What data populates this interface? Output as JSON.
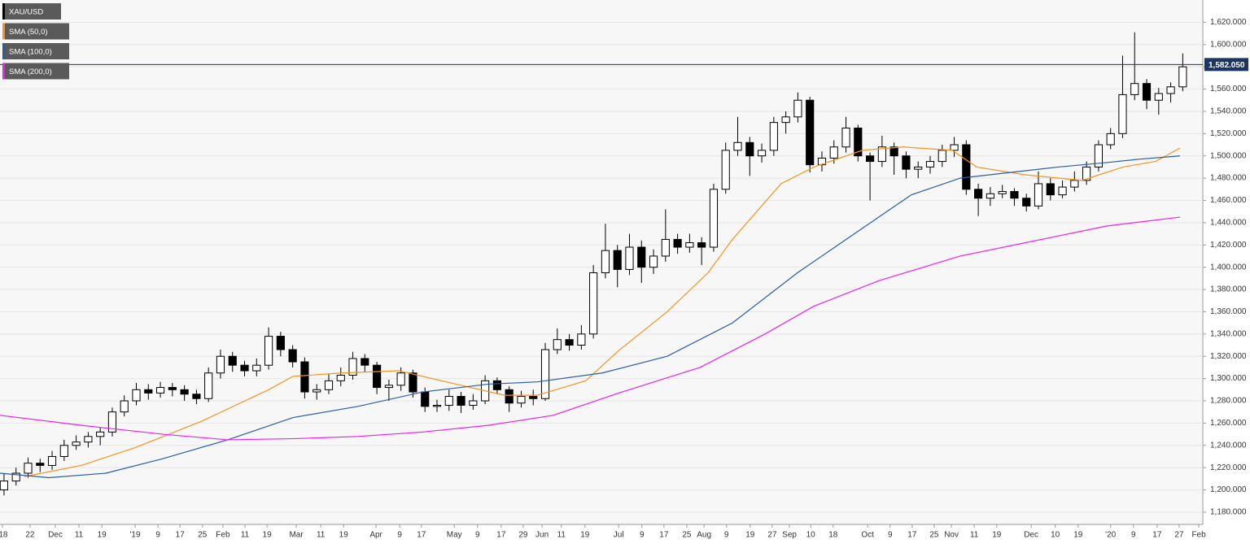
{
  "chart_data": {
    "type": "candlestick",
    "xlim": [
      0,
      300
    ],
    "ylim": [
      1169,
      1640
    ],
    "xticks": [
      {
        "value": 0.6,
        "label": "'18"
      },
      {
        "value": 7.5,
        "label": "22"
      },
      {
        "value": 13.8,
        "label": "Dec"
      },
      {
        "value": 19.7,
        "label": "11"
      },
      {
        "value": 25.4,
        "label": "19"
      },
      {
        "value": 33.7,
        "label": "'19"
      },
      {
        "value": 39.4,
        "label": "9"
      },
      {
        "value": 44.9,
        "label": "17"
      },
      {
        "value": 50.5,
        "label": "25"
      },
      {
        "value": 55.6,
        "label": "Feb"
      },
      {
        "value": 61.1,
        "label": "11"
      },
      {
        "value": 66.6,
        "label": "19"
      },
      {
        "value": 73.9,
        "label": "Mar"
      },
      {
        "value": 80,
        "label": "11"
      },
      {
        "value": 85.7,
        "label": "19"
      },
      {
        "value": 93.8,
        "label": "Apr"
      },
      {
        "value": 99.7,
        "label": "9"
      },
      {
        "value": 105.1,
        "label": "17"
      },
      {
        "value": 113.3,
        "label": "May"
      },
      {
        "value": 119.1,
        "label": "9"
      },
      {
        "value": 125,
        "label": "17"
      },
      {
        "value": 130.5,
        "label": "29"
      },
      {
        "value": 135.2,
        "label": "Jun"
      },
      {
        "value": 140,
        "label": "11"
      },
      {
        "value": 145.9,
        "label": "19"
      },
      {
        "value": 154.3,
        "label": "Jul"
      },
      {
        "value": 160.1,
        "label": "9"
      },
      {
        "value": 165.6,
        "label": "17"
      },
      {
        "value": 171.3,
        "label": "25"
      },
      {
        "value": 175.6,
        "label": "Aug"
      },
      {
        "value": 181.2,
        "label": "9"
      },
      {
        "value": 187.1,
        "label": "19"
      },
      {
        "value": 192.6,
        "label": "27"
      },
      {
        "value": 196.9,
        "label": "Sep"
      },
      {
        "value": 202.2,
        "label": "10"
      },
      {
        "value": 207.8,
        "label": "18"
      },
      {
        "value": 216.4,
        "label": "Oct"
      },
      {
        "value": 222,
        "label": "9"
      },
      {
        "value": 227.5,
        "label": "17"
      },
      {
        "value": 233,
        "label": "25"
      },
      {
        "value": 237.3,
        "label": "Nov"
      },
      {
        "value": 243,
        "label": "11"
      },
      {
        "value": 248.6,
        "label": "19"
      },
      {
        "value": 257.2,
        "label": "Dec"
      },
      {
        "value": 263.2,
        "label": "10"
      },
      {
        "value": 268.9,
        "label": "19"
      },
      {
        "value": 277,
        "label": "'20"
      },
      {
        "value": 282.7,
        "label": "9"
      },
      {
        "value": 288.6,
        "label": "17"
      },
      {
        "value": 294.1,
        "label": "27"
      },
      {
        "value": 299,
        "label": "Feb"
      }
    ],
    "yticks": [
      {
        "value": 1180,
        "label": "1,180.000"
      },
      {
        "value": 1200,
        "label": "1,200.000"
      },
      {
        "value": 1220,
        "label": "1,220.000"
      },
      {
        "value": 1240,
        "label": "1,240.000"
      },
      {
        "value": 1260,
        "label": "1,260.000"
      },
      {
        "value": 1280,
        "label": "1,280.000"
      },
      {
        "value": 1300,
        "label": "1,300.000"
      },
      {
        "value": 1320,
        "label": "1,320.000"
      },
      {
        "value": 1340,
        "label": "1,340.000"
      },
      {
        "value": 1360,
        "label": "1,360.000"
      },
      {
        "value": 1380,
        "label": "1,380.000"
      },
      {
        "value": 1400,
        "label": "1,400.000"
      },
      {
        "value": 1420,
        "label": "1,420.000"
      },
      {
        "value": 1440,
        "label": "1,440.000"
      },
      {
        "value": 1460,
        "label": "1,460.000"
      },
      {
        "value": 1480,
        "label": "1,480.000"
      },
      {
        "value": 1500,
        "label": "1,500.000"
      },
      {
        "value": 1520,
        "label": "1,520.000"
      },
      {
        "value": 1540,
        "label": "1,540.000"
      },
      {
        "value": 1560,
        "label": "1,560.000"
      },
      {
        "value": 1580,
        "label": "1,580.000"
      },
      {
        "value": 1600,
        "label": "1,600.000"
      },
      {
        "value": 1620,
        "label": "1,620.000"
      }
    ],
    "grid": true,
    "last_price": {
      "value": 1582.05,
      "label": "1,582.050",
      "color": "#1c3561"
    },
    "series": [
      {
        "name": "XAU/USD",
        "color": "#000000",
        "x": [
          1,
          4,
          7,
          10,
          13,
          16,
          19,
          22,
          25,
          28,
          31,
          34,
          37,
          40,
          43,
          46,
          49,
          52,
          55,
          58,
          61,
          64,
          67,
          70,
          73,
          76,
          79,
          82,
          85,
          88,
          91,
          94,
          97,
          100,
          103,
          106,
          109,
          112,
          115,
          118,
          121,
          124,
          127,
          130,
          133,
          136,
          139,
          142,
          145,
          148,
          151,
          154,
          157,
          160,
          163,
          166,
          169,
          172,
          175,
          178,
          181,
          184,
          187,
          190,
          193,
          196,
          199,
          202,
          205,
          208,
          211,
          214,
          217,
          220,
          223,
          226,
          229,
          232,
          235,
          238,
          241,
          244,
          247,
          250,
          253,
          256,
          259,
          262,
          265,
          268,
          271,
          274,
          277,
          280,
          283,
          286,
          289,
          292,
          295
        ],
        "open": [
          1200,
          1208,
          1215,
          1224,
          1222,
          1230,
          1240,
          1243,
          1248,
          1252,
          1270,
          1280,
          1290,
          1287,
          1292,
          1290,
          1286,
          1282,
          1305,
          1320,
          1312,
          1307,
          1312,
          1338,
          1326,
          1315,
          1288,
          1290,
          1298,
          1303,
          1318,
          1312,
          1292,
          1294,
          1305,
          1288,
          1275,
          1276,
          1284,
          1276,
          1280,
          1298,
          1290,
          1278,
          1284,
          1282,
          1326,
          1335,
          1330,
          1340,
          1395,
          1415,
          1398,
          1418,
          1400,
          1410,
          1425,
          1418,
          1422,
          1418,
          1470,
          1505,
          1512,
          1500,
          1505,
          1530,
          1535,
          1550,
          1492,
          1498,
          1508,
          1525,
          1500,
          1495,
          1508,
          1500,
          1488,
          1490,
          1495,
          1505,
          1510,
          1470,
          1462,
          1466,
          1468,
          1462,
          1455,
          1475,
          1465,
          1472,
          1478,
          1490,
          1510,
          1520,
          1555,
          1565,
          1550,
          1556,
          1562
        ],
        "high": [
          1215,
          1220,
          1229,
          1228,
          1235,
          1245,
          1249,
          1252,
          1256,
          1274,
          1285,
          1296,
          1295,
          1297,
          1296,
          1294,
          1290,
          1310,
          1326,
          1324,
          1316,
          1318,
          1346,
          1342,
          1330,
          1319,
          1295,
          1304,
          1310,
          1324,
          1322,
          1315,
          1299,
          1310,
          1308,
          1292,
          1281,
          1290,
          1288,
          1286,
          1303,
          1301,
          1293,
          1289,
          1290,
          1332,
          1345,
          1340,
          1348,
          1402,
          1439,
          1420,
          1430,
          1424,
          1416,
          1452,
          1430,
          1430,
          1427,
          1475,
          1512,
          1535,
          1517,
          1511,
          1535,
          1540,
          1557,
          1553,
          1504,
          1514,
          1535,
          1528,
          1503,
          1518,
          1512,
          1504,
          1495,
          1500,
          1510,
          1517,
          1514,
          1475,
          1472,
          1474,
          1471,
          1466,
          1486,
          1480,
          1478,
          1486,
          1495,
          1514,
          1525,
          1590,
          1611,
          1569,
          1561,
          1566,
          1592
        ],
        "low": [
          1195,
          1204,
          1211,
          1216,
          1218,
          1226,
          1236,
          1238,
          1240,
          1248,
          1266,
          1276,
          1281,
          1283,
          1284,
          1280,
          1277,
          1279,
          1300,
          1306,
          1302,
          1302,
          1308,
          1320,
          1310,
          1282,
          1281,
          1286,
          1293,
          1299,
          1306,
          1286,
          1280,
          1289,
          1283,
          1270,
          1270,
          1271,
          1269,
          1272,
          1277,
          1286,
          1270,
          1274,
          1276,
          1280,
          1322,
          1325,
          1326,
          1336,
          1390,
          1382,
          1393,
          1386,
          1394,
          1405,
          1412,
          1413,
          1402,
          1414,
          1466,
          1500,
          1482,
          1494,
          1500,
          1520,
          1530,
          1485,
          1486,
          1493,
          1503,
          1495,
          1460,
          1490,
          1483,
          1480,
          1480,
          1484,
          1490,
          1499,
          1465,
          1446,
          1455,
          1462,
          1455,
          1450,
          1452,
          1460,
          1462,
          1468,
          1474,
          1486,
          1506,
          1516,
          1550,
          1542,
          1537,
          1548,
          1558
        ],
        "close": [
          1208,
          1215,
          1224,
          1222,
          1230,
          1240,
          1243,
          1248,
          1252,
          1270,
          1280,
          1290,
          1287,
          1292,
          1290,
          1286,
          1282,
          1305,
          1320,
          1312,
          1307,
          1312,
          1338,
          1326,
          1315,
          1288,
          1290,
          1298,
          1303,
          1318,
          1312,
          1292,
          1294,
          1305,
          1288,
          1275,
          1276,
          1284,
          1276,
          1280,
          1298,
          1290,
          1278,
          1284,
          1282,
          1326,
          1335,
          1330,
          1340,
          1395,
          1415,
          1398,
          1418,
          1400,
          1410,
          1425,
          1418,
          1422,
          1418,
          1470,
          1505,
          1512,
          1500,
          1505,
          1530,
          1535,
          1550,
          1492,
          1498,
          1508,
          1525,
          1500,
          1495,
          1508,
          1500,
          1488,
          1490,
          1495,
          1505,
          1510,
          1470,
          1462,
          1466,
          1468,
          1462,
          1455,
          1475,
          1465,
          1472,
          1478,
          1490,
          1510,
          1520,
          1555,
          1565,
          1550,
          1556,
          1562,
          1580
        ]
      },
      {
        "name": "SMA (50,0)",
        "color": "#f7931e",
        "x": [
          6.1,
          20.3,
          33.7,
          50.5,
          67,
          73.1,
          85.2,
          99.5,
          113.7,
          125.8,
          134,
          146.1,
          154.3,
          166.4,
          176.6,
          182.7,
          194.8,
          203,
          215.1,
          225.3,
          237.5,
          243.6,
          255.7,
          269.9,
          280.1,
          288.2,
          294.3
        ],
        "values": [
          1212,
          1222,
          1238,
          1262,
          1290,
          1302,
          1305,
          1307,
          1295,
          1285,
          1285,
          1298,
          1325,
          1360,
          1395,
          1425,
          1475,
          1490,
          1505,
          1508,
          1505,
          1490,
          1483,
          1478,
          1490,
          1495,
          1507
        ]
      },
      {
        "name": "SMA (100,0)",
        "color": "#2a5ca8",
        "x": [
          0,
          12.2,
          26.4,
          40.6,
          56.8,
          73.1,
          89.3,
          105.5,
          121.8,
          134,
          150.2,
          166.4,
          182.7,
          198.9,
          215.1,
          227.3,
          239.5,
          251.7,
          263.9,
          276,
          284.1,
          294.3
        ],
        "values": [
          1215,
          1211,
          1215,
          1228,
          1245,
          1265,
          1275,
          1288,
          1295,
          1297,
          1305,
          1320,
          1350,
          1395,
          1435,
          1465,
          1480,
          1485,
          1490,
          1494,
          1497,
          1500
        ]
      },
      {
        "name": "SMA (200,0)",
        "color": "#ee1fee",
        "x": [
          0,
          20.3,
          40.6,
          56.8,
          73.1,
          89.3,
          105.5,
          121.8,
          138,
          154.3,
          174.6,
          190.8,
          203,
          219.3,
          239.5,
          259.8,
          276,
          294.3
        ],
        "values": [
          1267,
          1258,
          1250,
          1245,
          1246,
          1248,
          1252,
          1258,
          1267,
          1287,
          1310,
          1340,
          1365,
          1388,
          1410,
          1425,
          1437,
          1445
        ]
      }
    ]
  }
}
